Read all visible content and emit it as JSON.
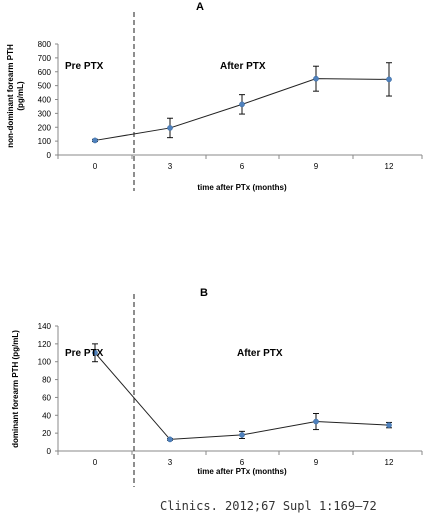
{
  "chart_data": [
    {
      "type": "line",
      "panel": "A",
      "x": [
        0,
        3,
        6,
        9,
        12
      ],
      "series": [
        {
          "values": [
            105,
            195,
            365,
            550,
            545
          ],
          "errors": [
            8,
            70,
            70,
            90,
            120
          ]
        }
      ],
      "xlabel": "time after PTx (months)",
      "ylabel": [
        "non-dominant forearm PTH",
        "(pg/mL)"
      ],
      "ylim": [
        0,
        800
      ],
      "yticks": [
        0,
        100,
        200,
        300,
        400,
        500,
        600,
        700,
        800
      ],
      "xticks": [
        "0",
        "3",
        "6",
        "9",
        "12"
      ],
      "annotations": {
        "pre": "Pre PTX",
        "post": "After PTX"
      },
      "divider_x": 1.5,
      "grid": false,
      "marker_color": "#4f81bd"
    },
    {
      "type": "line",
      "panel": "B",
      "x": [
        0,
        3,
        6,
        9,
        12
      ],
      "series": [
        {
          "values": [
            110,
            13,
            18,
            33,
            29
          ],
          "errors": [
            10,
            1,
            4,
            9,
            3
          ]
        }
      ],
      "xlabel": "time after PTx (months)",
      "ylabel": [
        "dominant forearm PTH (pg/mL)"
      ],
      "ylim": [
        0,
        140
      ],
      "yticks": [
        0,
        20,
        40,
        60,
        80,
        100,
        120,
        140
      ],
      "xticks": [
        "0",
        "3",
        "6",
        "9",
        "12"
      ],
      "annotations": {
        "pre": "Pre PTX",
        "post": "After PTX"
      },
      "divider_x": 1.5,
      "grid": false,
      "marker_color": "#4f81bd"
    }
  ],
  "citation": "Clinics. 2012;67 Supl 1:169–72"
}
